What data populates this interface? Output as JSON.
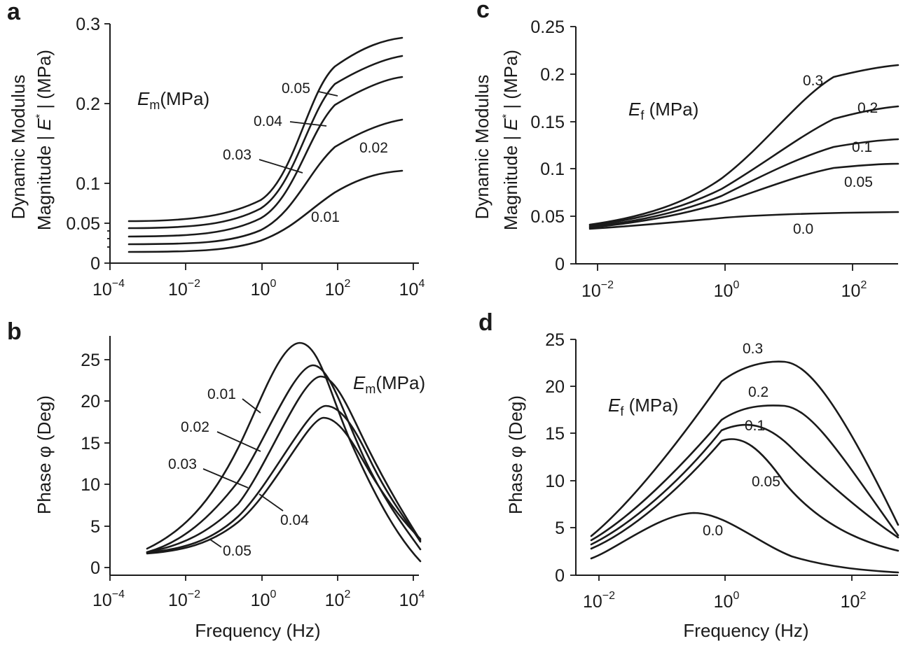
{
  "figure": {
    "background": "#ffffff",
    "ink": "#1a1a1a"
  },
  "chart_data": [
    {
      "panel": "a",
      "type": "line",
      "ylabel_line1": "Dynamic Modulus",
      "ylabel_line2": "Magnitude | E* | (MPa)",
      "xlabel": "",
      "x_scale": "log",
      "xlim": [
        0.0001,
        10000
      ],
      "ylim": [
        0,
        0.3
      ],
      "x_tick_labels": [
        "10^-4",
        "10^-2",
        "10^0",
        "10^2",
        "10^4"
      ],
      "y_tick_labels": [
        "0",
        "0.05",
        "0.1",
        "0.2",
        "0.3"
      ],
      "legend_title": "Em(MPa)",
      "x": [
        0.0001,
        0.001,
        0.01,
        0.1,
        1,
        10,
        100,
        1000,
        3000
      ],
      "series": [
        {
          "name": "0.01",
          "values": [
            0.013,
            0.0135,
            0.015,
            0.02,
            0.035,
            0.065,
            0.095,
            0.11,
            0.115
          ]
        },
        {
          "name": "0.02",
          "values": [
            0.024,
            0.025,
            0.027,
            0.035,
            0.055,
            0.1,
            0.15,
            0.172,
            0.178
          ]
        },
        {
          "name": "0.03",
          "values": [
            0.033,
            0.034,
            0.038,
            0.048,
            0.075,
            0.14,
            0.195,
            0.225,
            0.232
          ]
        },
        {
          "name": "0.04",
          "values": [
            0.043,
            0.044,
            0.048,
            0.058,
            0.09,
            0.16,
            0.22,
            0.252,
            0.26
          ]
        },
        {
          "name": "0.05",
          "values": [
            0.052,
            0.054,
            0.058,
            0.07,
            0.1,
            0.175,
            0.24,
            0.273,
            0.282
          ]
        }
      ]
    },
    {
      "panel": "b",
      "type": "line",
      "ylabel": "Phase φ (Deg)",
      "xlabel": "Frequency (Hz)",
      "x_scale": "log",
      "xlim": [
        0.0001,
        10000
      ],
      "ylim": [
        0,
        28
      ],
      "x_tick_labels": [
        "10^-4",
        "10^-2",
        "10^0",
        "10^2",
        "10^4"
      ],
      "y_tick_labels": [
        "0",
        "5",
        "10",
        "15",
        "20",
        "25"
      ],
      "legend_title": "Em(MPa)",
      "x": [
        0.0005,
        0.005,
        0.05,
        0.5,
        1,
        5,
        10,
        30,
        100,
        1000,
        10000
      ],
      "series": [
        {
          "name": "0.01",
          "values": [
            2.2,
            5,
            12,
            23,
            26,
            27,
            25,
            21,
            14,
            5,
            0.5
          ]
        },
        {
          "name": "0.02",
          "values": [
            1.9,
            4,
            9,
            17,
            20,
            24,
            24,
            22,
            16,
            7,
            1.2
          ]
        },
        {
          "name": "0.03",
          "values": [
            1.8,
            3.2,
            7,
            14,
            17,
            22,
            23,
            22,
            18,
            8,
            2.5
          ]
        },
        {
          "name": "0.04",
          "values": [
            1.6,
            2.7,
            5.5,
            11,
            13.5,
            18,
            19,
            19.5,
            16,
            8,
            3
          ]
        },
        {
          "name": "0.05",
          "values": [
            1.5,
            2.4,
            5,
            10,
            12.5,
            17,
            18,
            18,
            16,
            8,
            2.6
          ]
        }
      ]
    },
    {
      "panel": "c",
      "type": "line",
      "ylabel_line1": "Dynamic Modulus",
      "ylabel_line2": "Magnitude | E* | (MPa)",
      "xlabel": "",
      "x_scale": "log",
      "xlim": [
        0.005,
        500
      ],
      "ylim": [
        0,
        0.25
      ],
      "x_tick_labels": [
        "10^-2",
        "10^0",
        "10^2"
      ],
      "y_tick_labels": [
        "0",
        "0.05",
        "0.1",
        "0.15",
        "0.2",
        "0.25"
      ],
      "legend_title": "Ef (MPa)",
      "x": [
        0.008,
        0.03,
        0.1,
        0.3,
        1,
        3,
        10,
        30,
        100,
        400
      ],
      "series": [
        {
          "name": "0.0",
          "values": [
            0.037,
            0.039,
            0.041,
            0.044,
            0.048,
            0.051,
            0.053,
            0.054,
            0.054,
            0.054
          ]
        },
        {
          "name": "0.05",
          "values": [
            0.038,
            0.041,
            0.045,
            0.052,
            0.062,
            0.075,
            0.088,
            0.097,
            0.102,
            0.104
          ]
        },
        {
          "name": "0.1",
          "values": [
            0.039,
            0.043,
            0.048,
            0.056,
            0.07,
            0.088,
            0.106,
            0.12,
            0.127,
            0.131
          ]
        },
        {
          "name": "0.2",
          "values": [
            0.04,
            0.045,
            0.051,
            0.06,
            0.077,
            0.1,
            0.126,
            0.146,
            0.158,
            0.164
          ]
        },
        {
          "name": "0.3",
          "values": [
            0.041,
            0.047,
            0.053,
            0.065,
            0.087,
            0.117,
            0.155,
            0.184,
            0.2,
            0.209
          ]
        }
      ]
    },
    {
      "panel": "d",
      "type": "line",
      "ylabel": "Phase φ (Deg)",
      "xlabel": "Frequency (Hz)",
      "x_scale": "log",
      "xlim": [
        0.005,
        500
      ],
      "ylim": [
        0,
        25
      ],
      "x_tick_labels": [
        "10^-2",
        "10^0",
        "10^2"
      ],
      "y_tick_labels": [
        "0",
        "5",
        "10",
        "15",
        "20",
        "25"
      ],
      "legend_title": "Ef (MPa)",
      "x": [
        0.008,
        0.03,
        0.1,
        0.3,
        1,
        3,
        10,
        30,
        100,
        400
      ],
      "series": [
        {
          "name": "0.0",
          "values": [
            1.8,
            3.5,
            5.5,
            6.6,
            5.5,
            3.7,
            2.2,
            1.3,
            0.7,
            0.3
          ]
        },
        {
          "name": "0.05",
          "values": [
            2.8,
            5,
            8.5,
            12.5,
            14.2,
            13.8,
            11,
            7,
            4,
            2.6
          ]
        },
        {
          "name": "0.1",
          "values": [
            3.2,
            5.7,
            9.5,
            13.5,
            15.5,
            15.5,
            13.8,
            10,
            6.5,
            4.2
          ]
        },
        {
          "name": "0.2",
          "values": [
            3.7,
            6.2,
            10.3,
            14.8,
            17.5,
            18,
            17.5,
            14.5,
            9,
            4.1
          ]
        },
        {
          "name": "0.3",
          "values": [
            4.2,
            6.8,
            11,
            16,
            19.5,
            22,
            22.6,
            21.5,
            15,
            5.2
          ]
        }
      ]
    }
  ]
}
